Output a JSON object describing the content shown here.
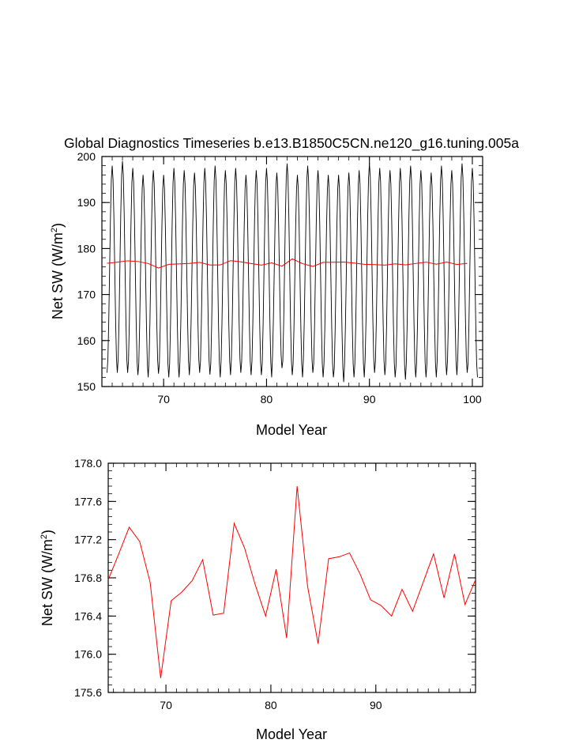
{
  "chart_data": [
    {
      "type": "line",
      "title": "Global Diagnostics Timeseries b.e13.B1850C5CN.ne120_g16.tuning.005a",
      "xlabel": "Model Year",
      "ylabel": "Net SW (W/m",
      "ylabel_sup": "2",
      "ylabel_close": ")",
      "xlim": [
        64,
        101
      ],
      "ylim": [
        150,
        200
      ],
      "x_ticks": [
        70,
        80,
        90,
        100
      ],
      "y_ticks": [
        150,
        160,
        170,
        180,
        190,
        200
      ],
      "grid": false,
      "monthly_series": {
        "color": "#000000",
        "x_start": 64.5,
        "x_end": 100.5,
        "step": 0.08333,
        "annual_min": [
          153,
          153,
          152.5,
          152,
          152.8,
          152,
          152,
          152.5,
          153,
          152.6,
          152,
          152.5,
          153,
          152.5,
          152.5,
          152,
          154,
          152.5,
          152,
          153,
          152,
          152,
          151,
          152,
          152,
          153,
          152.5,
          152,
          151.5,
          152,
          152,
          152,
          152.5,
          152.5,
          153,
          152,
          153
        ],
        "annual_max": [
          198,
          199,
          197.5,
          196,
          197,
          196,
          197.5,
          197,
          196.5,
          197.5,
          198,
          197,
          197.5,
          196,
          197,
          197.5,
          196.5,
          198.5,
          196,
          198,
          197,
          196,
          196,
          196.5,
          197,
          198.5,
          197.5,
          197,
          197.5,
          198,
          197,
          196.5,
          198,
          197,
          198.5,
          197.5,
          196.5
        ]
      },
      "annual_series": {
        "color": "#ff0000",
        "x": [
          64.5,
          65.5,
          66.5,
          67.5,
          68.5,
          69.5,
          70.5,
          71.5,
          72.5,
          73.5,
          74.5,
          75.5,
          76.5,
          77.5,
          78.5,
          79.5,
          80.5,
          81.5,
          82.5,
          83.5,
          84.5,
          85.5,
          86.5,
          87.5,
          88.5,
          89.5,
          90.5,
          91.5,
          92.5,
          93.5,
          94.5,
          95.5,
          96.5,
          97.5,
          98.5,
          99.5
        ],
        "y": [
          176.78,
          177.05,
          177.33,
          177.18,
          176.75,
          175.75,
          176.56,
          176.65,
          176.77,
          176.99,
          176.41,
          176.43,
          177.37,
          177.11,
          176.73,
          176.4,
          176.89,
          176.17,
          177.76,
          176.71,
          176.11,
          177.0,
          177.02,
          177.06,
          176.84,
          176.57,
          176.51,
          176.4,
          176.68,
          176.45,
          176.75,
          177.05,
          176.59,
          177.05,
          176.52,
          176.78
        ]
      }
    },
    {
      "type": "line",
      "title": "",
      "xlabel": "Model Year",
      "ylabel": "Net SW (W/m",
      "ylabel_sup": "2",
      "ylabel_close": ")",
      "xlim": [
        64.5,
        99.5
      ],
      "ylim": [
        175.6,
        178.0
      ],
      "x_ticks": [
        70,
        80,
        90
      ],
      "y_ticks": [
        "175.6",
        "176.0",
        "176.4",
        "176.8",
        "177.2",
        "177.6",
        "178.0"
      ],
      "grid": false,
      "series": [
        {
          "color": "#ff0000",
          "x": [
            64.5,
            65.5,
            66.5,
            67.5,
            68.5,
            69.5,
            70.5,
            71.5,
            72.5,
            73.5,
            74.5,
            75.5,
            76.5,
            77.5,
            78.5,
            79.5,
            80.5,
            81.5,
            82.5,
            83.5,
            84.5,
            85.5,
            86.5,
            87.5,
            88.5,
            89.5,
            90.5,
            91.5,
            92.5,
            93.5,
            94.5,
            95.5,
            96.5,
            97.5,
            98.5,
            99.5
          ],
          "y": [
            176.78,
            177.05,
            177.33,
            177.18,
            176.75,
            175.75,
            176.56,
            176.65,
            176.77,
            176.99,
            176.41,
            176.43,
            177.37,
            177.11,
            176.73,
            176.4,
            176.89,
            176.17,
            177.76,
            176.71,
            176.11,
            177.0,
            177.02,
            177.06,
            176.84,
            176.57,
            176.51,
            176.4,
            176.68,
            176.45,
            176.75,
            177.05,
            176.59,
            177.05,
            176.52,
            176.78
          ]
        }
      ]
    }
  ]
}
